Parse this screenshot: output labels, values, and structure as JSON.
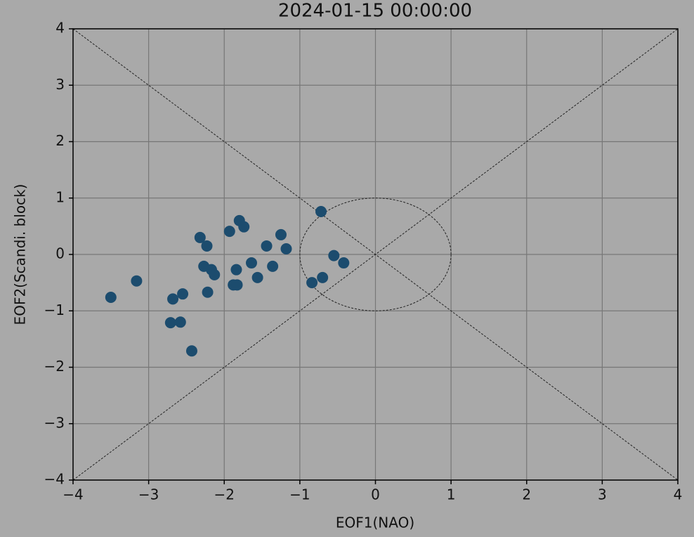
{
  "chart_data": {
    "type": "scatter",
    "title": "2024-01-15 00:00:00",
    "x_label": "EOF1(NAO)",
    "y_label": "EOF2(Scandi. block)",
    "x": [
      -3.5,
      -3.16,
      -2.68,
      -2.55,
      -2.71,
      -2.58,
      -2.43,
      -2.32,
      -2.23,
      -2.27,
      -2.17,
      -2.13,
      -2.22,
      -1.93,
      -1.8,
      -1.74,
      -1.84,
      -1.88,
      -1.83,
      -1.64,
      -1.56,
      -1.44,
      -1.36,
      -1.25,
      -1.18,
      -0.72,
      -0.84,
      -0.7,
      -0.55,
      -0.42
    ],
    "values": [
      -0.76,
      -0.47,
      -0.79,
      -0.7,
      -1.21,
      -1.2,
      -1.71,
      0.3,
      0.15,
      -0.21,
      -0.27,
      -0.36,
      -0.67,
      0.41,
      0.6,
      0.49,
      -0.27,
      -0.54,
      -0.54,
      -0.15,
      -0.41,
      0.15,
      -0.21,
      0.35,
      0.1,
      0.76,
      -0.5,
      -0.41,
      -0.02,
      -0.15
    ],
    "color": "#1c4c6e",
    "xlim": [
      -4,
      4
    ],
    "ylim": [
      -4,
      4
    ],
    "xticks": [
      {
        "value": -4,
        "label": "−4"
      },
      {
        "value": -3,
        "label": "−3"
      },
      {
        "value": -2,
        "label": "−2"
      },
      {
        "value": -1,
        "label": "−1"
      },
      0,
      1,
      2,
      3,
      4
    ],
    "yticks": [
      {
        "value": -4,
        "label": "−4"
      },
      {
        "value": -3,
        "label": "−3"
      },
      {
        "value": -2,
        "label": "−2"
      },
      {
        "value": -1,
        "label": "−1"
      },
      0,
      1,
      2,
      3,
      4
    ],
    "grid": true
  }
}
